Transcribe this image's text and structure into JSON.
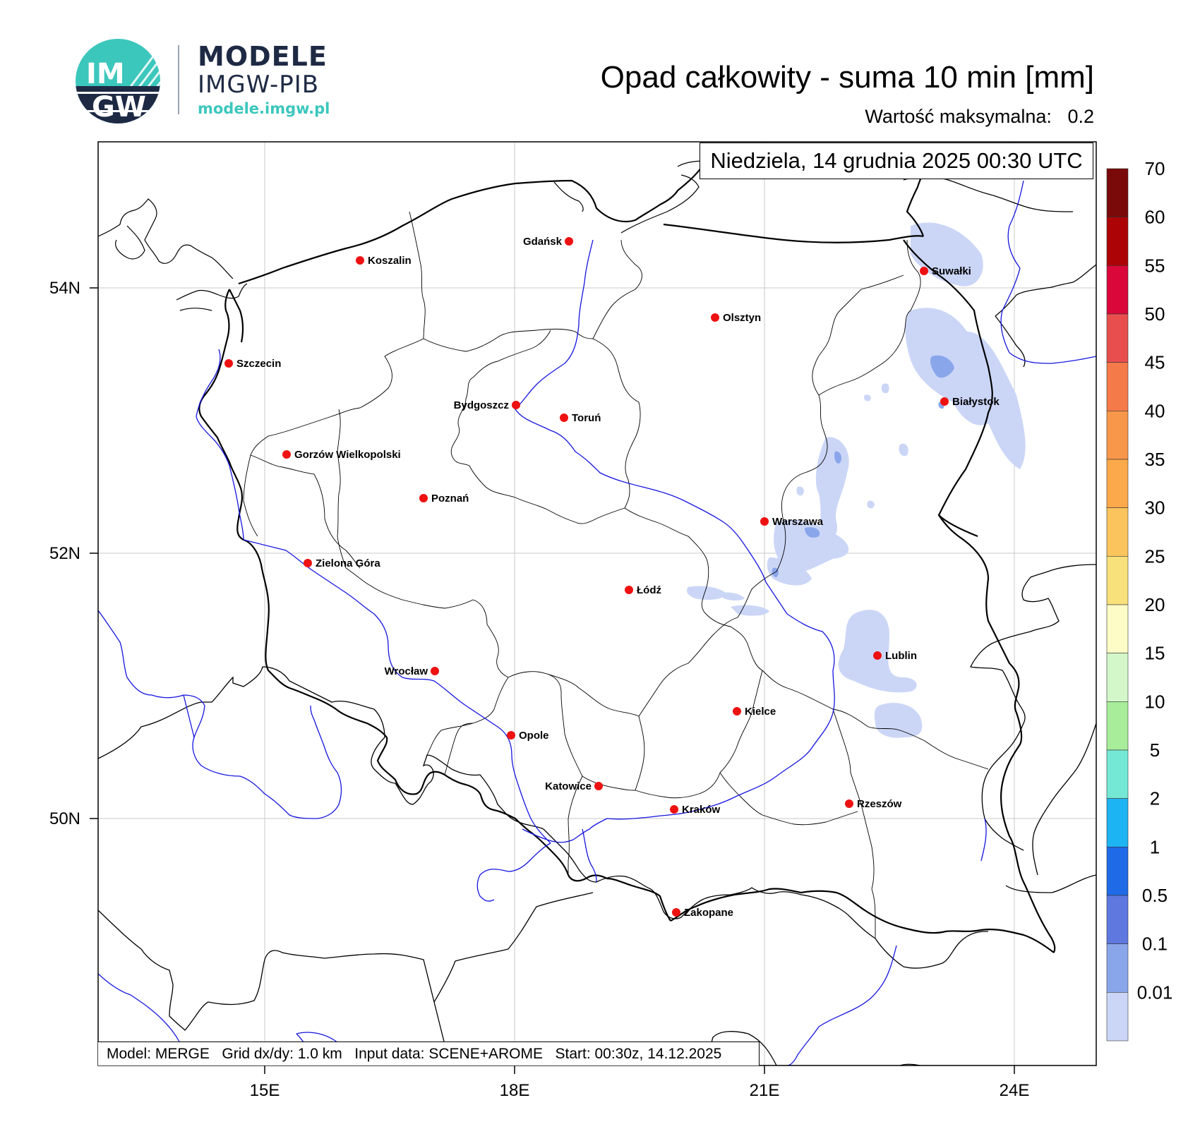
{
  "header": {
    "logo_text_top": "IM",
    "logo_text_bottom": "GW",
    "brand_title": "MODELE",
    "brand_subtitle": "IMGW-PIB",
    "brand_url": "modele.imgw.pl",
    "map_title": "Opad całkowity - suma 10 min [mm]",
    "max_label": "Wartość maksymalna:",
    "max_value": "0.2",
    "colors": {
      "navy": "#1e2a44",
      "teal": "#3cc7bd"
    }
  },
  "map": {
    "timestamp": "Niedziela, 14 grudnia 2025 00:30 UTC",
    "footer": "Model: MERGE   Grid dx/dy: 1.0 km   Input data: SCENE+AROME   Start: 00:30z, 14.12.2025",
    "lat_labels": [
      "54N",
      "52N",
      "50N"
    ],
    "lon_labels": [
      "15E",
      "18E",
      "21E",
      "24E"
    ],
    "river_color": "#1515e0",
    "precip_color": "#cbd6f7",
    "precip_dark_color": "#8aa6eb",
    "cities": [
      {
        "name": "Gdańsk",
        "side": "left"
      },
      {
        "name": "Koszalin",
        "side": "right"
      },
      {
        "name": "Suwałki",
        "side": "right"
      },
      {
        "name": "Olsztyn",
        "side": "right"
      },
      {
        "name": "Szczecin",
        "side": "right"
      },
      {
        "name": "Białystok",
        "side": "right"
      },
      {
        "name": "Bydgoszcz",
        "side": "left"
      },
      {
        "name": "Toruń",
        "side": "right"
      },
      {
        "name": "Gorzów Wielkopolski",
        "side": "right"
      },
      {
        "name": "Poznań",
        "side": "right"
      },
      {
        "name": "Warszawa",
        "side": "right"
      },
      {
        "name": "Zielona Góra",
        "side": "right"
      },
      {
        "name": "Łódź",
        "side": "right"
      },
      {
        "name": "Lublin",
        "side": "right"
      },
      {
        "name": "Wrocław",
        "side": "left"
      },
      {
        "name": "Kielce",
        "side": "right"
      },
      {
        "name": "Opole",
        "side": "right"
      },
      {
        "name": "Katowice",
        "side": "left"
      },
      {
        "name": "Kraków",
        "side": "right"
      },
      {
        "name": "Rzeszów",
        "side": "right"
      },
      {
        "name": "Zakopane",
        "side": "right"
      }
    ]
  },
  "colorbar": {
    "labels": [
      "70",
      "60",
      "55",
      "50",
      "45",
      "40",
      "35",
      "30",
      "25",
      "20",
      "15",
      "10",
      "5",
      "2",
      "1",
      "0.5",
      "0.1",
      "0.01"
    ],
    "colors": [
      "#7a0a0a",
      "#ac0406",
      "#d9073a",
      "#e94e4e",
      "#f57a4a",
      "#f8964a",
      "#fba94a",
      "#fbc45c",
      "#f8e07a",
      "#fdfcc6",
      "#d3f7c9",
      "#a8ed9a",
      "#74e8d5",
      "#1db4f3",
      "#1f6ae7",
      "#5e78e0",
      "#8aa6eb",
      "#cbd6f7"
    ]
  }
}
